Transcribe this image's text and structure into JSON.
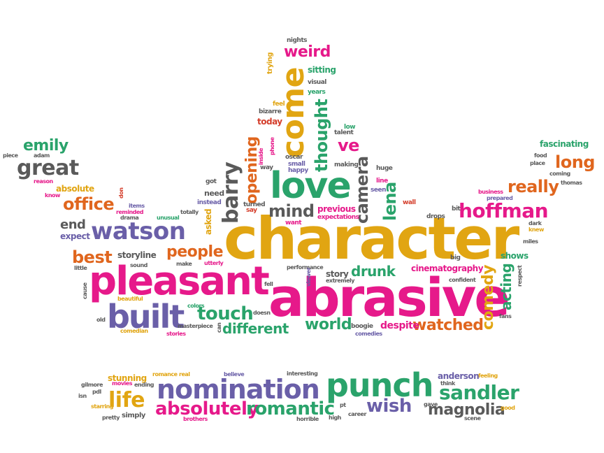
{
  "colors": {
    "pink": "#e6198a",
    "purple": "#6a5fa8",
    "gold": "#e1a512",
    "green": "#2aa36b",
    "orange": "#e0661e",
    "gray": "#5a5a5a",
    "red": "#d43d2a",
    "lightgray": "#9a9a9a"
  },
  "words": [
    {
      "text": "character",
      "c": "gold"
    },
    {
      "text": "abrasive",
      "c": "pink"
    },
    {
      "text": "pleasant",
      "c": "pink"
    },
    {
      "text": "love",
      "c": "green"
    },
    {
      "text": "come",
      "c": "gold"
    },
    {
      "text": "built",
      "c": "purple"
    },
    {
      "text": "watson",
      "c": "purple"
    },
    {
      "text": "nomination",
      "c": "purple"
    },
    {
      "text": "punch",
      "c": "green"
    },
    {
      "text": "hoffman",
      "c": "pink"
    },
    {
      "text": "sandler",
      "c": "green"
    },
    {
      "text": "life",
      "c": "gold"
    },
    {
      "text": "absolutely",
      "c": "pink"
    },
    {
      "text": "romantic",
      "c": "green"
    },
    {
      "text": "wish",
      "c": "purple"
    },
    {
      "text": "magnolia",
      "c": "gray"
    },
    {
      "text": "great",
      "c": "gray"
    },
    {
      "text": "emily",
      "c": "green"
    },
    {
      "text": "office",
      "c": "orange"
    },
    {
      "text": "really",
      "c": "orange"
    },
    {
      "text": "long",
      "c": "orange"
    },
    {
      "text": "weird",
      "c": "pink"
    },
    {
      "text": "barry",
      "c": "gray"
    },
    {
      "text": "opening",
      "c": "orange"
    },
    {
      "text": "thought",
      "c": "green"
    },
    {
      "text": "camera",
      "c": "gray"
    },
    {
      "text": "ve",
      "c": "pink"
    },
    {
      "text": "mind",
      "c": "gray"
    },
    {
      "text": "lena",
      "c": "green"
    },
    {
      "text": "people",
      "c": "orange"
    },
    {
      "text": "best",
      "c": "orange"
    },
    {
      "text": "end",
      "c": "gray"
    },
    {
      "text": "touch",
      "c": "green"
    },
    {
      "text": "different",
      "c": "green"
    },
    {
      "text": "drunk",
      "c": "green"
    },
    {
      "text": "world",
      "c": "green"
    },
    {
      "text": "watched",
      "c": "orange"
    },
    {
      "text": "comedy",
      "c": "gold"
    },
    {
      "text": "acting",
      "c": "green"
    },
    {
      "text": "storyline",
      "c": "gray"
    },
    {
      "text": "cinematography",
      "c": "pink"
    },
    {
      "text": "despite",
      "c": "pink"
    },
    {
      "text": "previous",
      "c": "pink"
    },
    {
      "text": "sitting",
      "c": "green"
    },
    {
      "text": "today",
      "c": "red"
    },
    {
      "text": "fascinating",
      "c": "green"
    },
    {
      "text": "shows",
      "c": "green"
    },
    {
      "text": "asked",
      "c": "gold"
    },
    {
      "text": "expect",
      "c": "purple"
    },
    {
      "text": "absolute",
      "c": "gold"
    },
    {
      "text": "story",
      "c": "gray"
    },
    {
      "text": "anderson",
      "c": "purple"
    },
    {
      "text": "stunning",
      "c": "gold"
    },
    {
      "text": "trying",
      "c": "gold"
    },
    {
      "text": "nights",
      "c": "gray"
    },
    {
      "text": "visual",
      "c": "gray"
    },
    {
      "text": "years",
      "c": "green"
    },
    {
      "text": "feel",
      "c": "gold"
    },
    {
      "text": "bizarre",
      "c": "gray"
    },
    {
      "text": "oscar",
      "c": "gray"
    },
    {
      "text": "small",
      "c": "purple"
    },
    {
      "text": "happy",
      "c": "purple"
    },
    {
      "text": "inside",
      "c": "pink"
    },
    {
      "text": "phone",
      "c": "pink"
    },
    {
      "text": "way",
      "c": "gray"
    },
    {
      "text": "talent",
      "c": "gray"
    },
    {
      "text": "low",
      "c": "green"
    },
    {
      "text": "making",
      "c": "gray"
    },
    {
      "text": "huge",
      "c": "gray"
    },
    {
      "text": "line",
      "c": "pink"
    },
    {
      "text": "seen",
      "c": "purple"
    },
    {
      "text": "wall",
      "c": "red"
    },
    {
      "text": "got",
      "c": "gray"
    },
    {
      "text": "instead",
      "c": "purple"
    },
    {
      "text": "need",
      "c": "gray"
    },
    {
      "text": "turned",
      "c": "gray"
    },
    {
      "text": "say",
      "c": "red"
    },
    {
      "text": "want",
      "c": "pink"
    },
    {
      "text": "expectations",
      "c": "pink"
    },
    {
      "text": "drops",
      "c": "gray"
    },
    {
      "text": "bit",
      "c": "gray"
    },
    {
      "text": "big",
      "c": "gray"
    },
    {
      "text": "piece",
      "c": "gray"
    },
    {
      "text": "adam",
      "c": "gray"
    },
    {
      "text": "reason",
      "c": "pink"
    },
    {
      "text": "know",
      "c": "pink"
    },
    {
      "text": "don",
      "c": "red"
    },
    {
      "text": "items",
      "c": "purple"
    },
    {
      "text": "reminded",
      "c": "pink"
    },
    {
      "text": "drama",
      "c": "gray"
    },
    {
      "text": "unusual",
      "c": "green"
    },
    {
      "text": "totally",
      "c": "gray"
    },
    {
      "text": "make",
      "c": "gray"
    },
    {
      "text": "utterly",
      "c": "pink"
    },
    {
      "text": "little",
      "c": "gray"
    },
    {
      "text": "sound",
      "c": "gray"
    },
    {
      "text": "performance",
      "c": "gray"
    },
    {
      "text": "viewer",
      "c": "purple"
    },
    {
      "text": "fell",
      "c": "gray"
    },
    {
      "text": "extremely",
      "c": "gray"
    },
    {
      "text": "confident",
      "c": "gray"
    },
    {
      "text": "respect",
      "c": "gray"
    },
    {
      "text": "cause",
      "c": "gray"
    },
    {
      "text": "beautiful",
      "c": "gold"
    },
    {
      "text": "old",
      "c": "gray"
    },
    {
      "text": "colors",
      "c": "green"
    },
    {
      "text": "masterpiece",
      "c": "gray"
    },
    {
      "text": "stories",
      "c": "pink"
    },
    {
      "text": "comedian",
      "c": "gold"
    },
    {
      "text": "doesn",
      "c": "gray"
    },
    {
      "text": "boogie",
      "c": "gray"
    },
    {
      "text": "comedies",
      "c": "purple"
    },
    {
      "text": "fans",
      "c": "gray"
    },
    {
      "text": "can",
      "c": "gray"
    },
    {
      "text": "business",
      "c": "pink"
    },
    {
      "text": "prepared",
      "c": "purple"
    },
    {
      "text": "food",
      "c": "gray"
    },
    {
      "text": "place",
      "c": "gray"
    },
    {
      "text": "coming",
      "c": "gray"
    },
    {
      "text": "thomas",
      "c": "gray"
    },
    {
      "text": "dark",
      "c": "gray"
    },
    {
      "text": "knew",
      "c": "gold"
    },
    {
      "text": "miles",
      "c": "gray"
    },
    {
      "text": "romance",
      "c": "gold"
    },
    {
      "text": "real",
      "c": "gold"
    },
    {
      "text": "believe",
      "c": "purple"
    },
    {
      "text": "interesting",
      "c": "gray"
    },
    {
      "text": "feeling",
      "c": "gold"
    },
    {
      "text": "think",
      "c": "gray"
    },
    {
      "text": "gilmore",
      "c": "gray"
    },
    {
      "text": "movies",
      "c": "pink"
    },
    {
      "text": "ending",
      "c": "gray"
    },
    {
      "text": "isn",
      "c": "gray"
    },
    {
      "text": "pdl",
      "c": "gray"
    },
    {
      "text": "starring",
      "c": "gold"
    },
    {
      "text": "pretty",
      "c": "gray"
    },
    {
      "text": "simply",
      "c": "gray"
    },
    {
      "text": "brothers",
      "c": "pink"
    },
    {
      "text": "pt",
      "c": "gray"
    },
    {
      "text": "horrible",
      "c": "gray"
    },
    {
      "text": "high",
      "c": "gray"
    },
    {
      "text": "career",
      "c": "gray"
    },
    {
      "text": "gave",
      "c": "gray"
    },
    {
      "text": "scene",
      "c": "gray"
    },
    {
      "text": "good",
      "c": "gold"
    }
  ]
}
